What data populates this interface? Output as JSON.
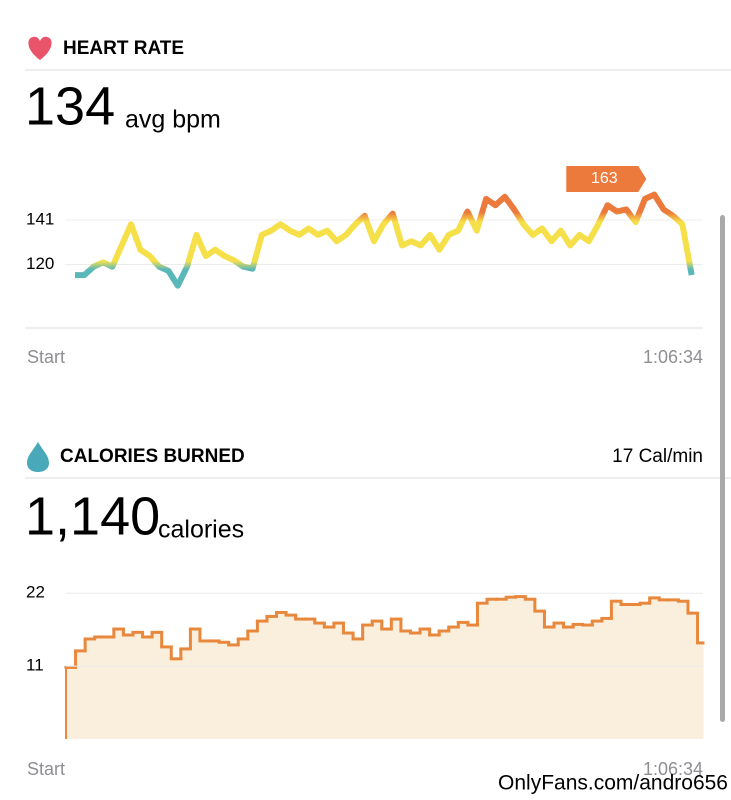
{
  "chart_data": [
    {
      "type": "line",
      "title": "HEART RATE",
      "summary": {
        "value": "134",
        "unit": "avg bpm"
      },
      "x_labels": [
        "Start",
        "1:06:34"
      ],
      "x": [
        0,
        1,
        2,
        3,
        4,
        5,
        6,
        7,
        8,
        9,
        10,
        11,
        12,
        13,
        14,
        15,
        16,
        17,
        18,
        19,
        20,
        21,
        22,
        23,
        24,
        25,
        26,
        27,
        28,
        29,
        30,
        31,
        32,
        33,
        34,
        35,
        36,
        37,
        38,
        39,
        40,
        41,
        42,
        43,
        44,
        45,
        46,
        47,
        48,
        49,
        50,
        51,
        52,
        53,
        54,
        55,
        56,
        57,
        58,
        59,
        60,
        61,
        62,
        63,
        64,
        65,
        66
      ],
      "values": [
        115,
        115,
        119,
        121,
        119,
        129,
        139,
        127,
        124,
        119,
        117,
        110,
        119,
        134,
        124,
        127,
        124,
        122,
        119,
        118,
        134,
        136,
        139,
        136,
        134,
        137,
        134,
        136,
        131,
        134,
        139,
        143,
        131,
        139,
        144,
        129,
        131,
        129,
        134,
        127,
        134,
        136,
        145,
        136,
        151,
        148,
        152,
        146,
        139,
        134,
        137,
        131,
        136,
        129,
        134,
        131,
        139,
        148,
        145,
        146,
        140,
        151,
        153,
        146,
        143,
        139,
        115
      ],
      "colors": [
        "#ec7a3c",
        "#f5e04a",
        "#5bb8b8"
      ],
      "xlim": [
        0,
        66.57
      ],
      "ylim": [
        90,
        167
      ],
      "yticks": [
        120,
        141
      ],
      "grid": true,
      "annotations": [
        {
          "text": "163"
        }
      ]
    },
    {
      "type": "step-area",
      "title": "CALORIES BURNED",
      "rate_label": "17 Cal/min",
      "summary": {
        "value": "1,140",
        "unit": "calories"
      },
      "x_labels": [
        "Start",
        "1:06:34"
      ],
      "x": [
        0,
        1,
        2,
        3,
        4,
        5,
        6,
        7,
        8,
        9,
        10,
        11,
        12,
        13,
        14,
        15,
        16,
        17,
        18,
        19,
        20,
        21,
        22,
        23,
        24,
        25,
        26,
        27,
        28,
        29,
        30,
        31,
        32,
        33,
        34,
        35,
        36,
        37,
        38,
        39,
        40,
        41,
        42,
        43,
        44,
        45,
        46,
        47,
        48,
        49,
        50,
        51,
        52,
        53,
        54,
        55,
        56,
        57,
        58,
        59,
        60,
        61,
        62,
        63,
        64,
        65,
        66
      ],
      "values": [
        10.8,
        13.3,
        15.1,
        15.4,
        15.4,
        16.6,
        15.7,
        16.1,
        15.4,
        16.1,
        13.9,
        12.1,
        13.6,
        16.6,
        14.8,
        14.8,
        14.6,
        14.2,
        15.1,
        16.3,
        17.8,
        18.5,
        19.1,
        18.7,
        18.1,
        18.1,
        17.5,
        16.9,
        17.5,
        16.0,
        15.1,
        17.2,
        17.8,
        16.6,
        18.1,
        16.3,
        16.0,
        16.6,
        15.7,
        16.3,
        16.9,
        17.6,
        17.2,
        20.5,
        21.1,
        21.1,
        21.4,
        21.5,
        21.1,
        19.3,
        16.9,
        17.5,
        16.9,
        17.3,
        17.2,
        17.8,
        18.2,
        20.8,
        20.3,
        20.3,
        20.5,
        21.3,
        21.0,
        21.0,
        20.8,
        19.0,
        14.5
      ],
      "color": "#e8883c",
      "fill": "#faeedd",
      "xlim": [
        0,
        66.57
      ],
      "ylim": [
        0,
        24
      ],
      "yticks": [
        11,
        22
      ],
      "grid": true
    }
  ],
  "watermark": "OnlyFans.com/andro656"
}
